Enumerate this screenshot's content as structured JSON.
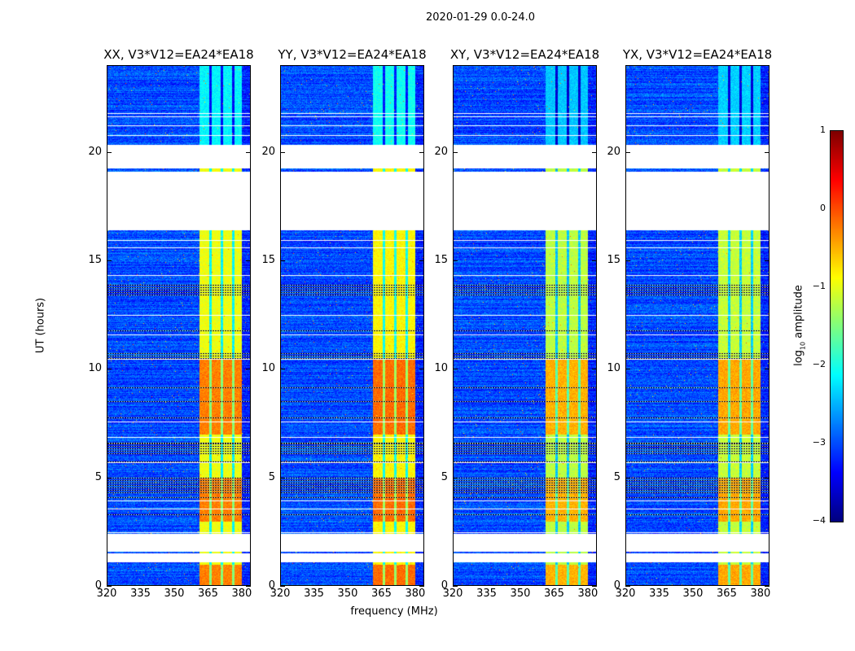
{
  "chart_data": {
    "type": "heatmap",
    "title": "2020-01-29 0.0-24.0",
    "xlabel": "frequency (MHz)",
    "ylabel": "UT (hours)",
    "xlim": [
      320,
      384
    ],
    "ylim": [
      0,
      24
    ],
    "xticks": [
      "320",
      "335",
      "350",
      "365",
      "380"
    ],
    "yticks": [
      "0",
      "5",
      "10",
      "15",
      "20"
    ],
    "panels": [
      {
        "title": "XX, V3*V12=EA24*EA18",
        "gain": 0.15
      },
      {
        "title": "YY, V3*V12=EA24*EA18",
        "gain": 0.25
      },
      {
        "title": "XY, V3*V12=EA24*EA18",
        "gain": -0.1
      },
      {
        "title": "YX, V3*V12=EA24*EA18",
        "gain": -0.05
      }
    ],
    "rfi_band_mhz": [
      361,
      380
    ],
    "rfi_band_dividers_mhz": [
      366,
      371,
      376
    ],
    "background_log_amp": -3.0,
    "band_log_amp": -1.1,
    "bright_intervals_ut": [
      [
        7.0,
        10.5
      ],
      [
        0.0,
        1.0
      ],
      [
        3.0,
        5.0
      ]
    ],
    "flagged_intervals_ut": [
      [
        19.25,
        20.35
      ],
      [
        16.4,
        19.1
      ],
      [
        1.6,
        2.4
      ],
      [
        1.1,
        1.5
      ]
    ],
    "dark_intervals_ut": [
      [
        13.4,
        13.9
      ],
      [
        6.1,
        6.6
      ],
      [
        4.3,
        5.1
      ],
      [
        10.5,
        10.8
      ]
    ],
    "colorbar": {
      "label_main": "log",
      "label_sub": "10",
      "label_rest": " amplitude",
      "range": [
        -4,
        1
      ],
      "ticks": [
        "1",
        "0",
        "−1",
        "−2",
        "−3",
        "−4"
      ],
      "colormap": "jet"
    }
  }
}
